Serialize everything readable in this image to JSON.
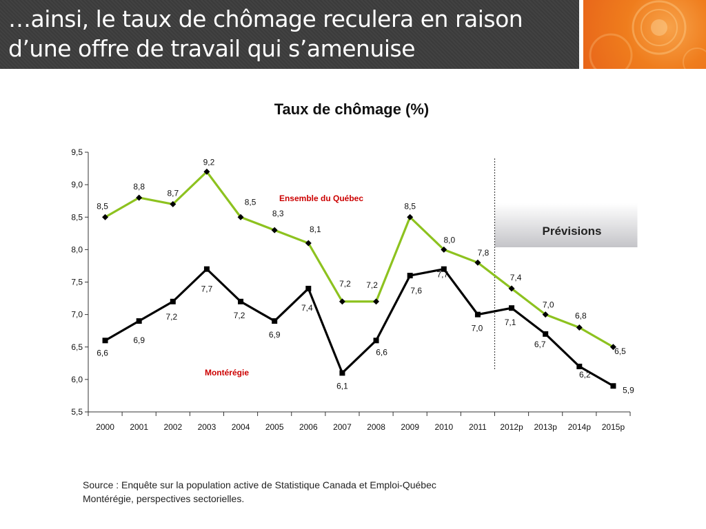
{
  "slide": {
    "title_line1": "…ainsi, le taux de chômage reculera en raison",
    "title_line2": "d’une offre de travail qui s’amenuise",
    "source_line1": "Source : Enquête sur la population active de Statistique Canada et Emploi-Québec",
    "source_line2": "Montérégie, perspectives sectorielles."
  },
  "colors": {
    "header_bg": "#3d3d3d",
    "accent_orange": "#ef7d1d",
    "series_quebec": "#8dc21f",
    "series_monteregie": "#000000",
    "series_label_red": "#cc0000"
  },
  "chart_data": {
    "type": "line",
    "title": "Taux de chômage (%)",
    "categories": [
      "2000",
      "2001",
      "2002",
      "2003",
      "2004",
      "2005",
      "2006",
      "2007",
      "2008",
      "2009",
      "2010",
      "2011",
      "2012p",
      "2013p",
      "2014p",
      "2015p"
    ],
    "series": [
      {
        "name": "Ensemble du Québec",
        "marker": "diamond",
        "values": [
          8.5,
          8.8,
          8.7,
          9.2,
          8.5,
          8.3,
          8.1,
          7.2,
          7.2,
          8.5,
          8.0,
          7.8,
          7.4,
          7.0,
          6.8,
          6.5
        ],
        "labels": [
          "8,5",
          "8,8",
          "8,7",
          "9,2",
          "8,5",
          "8,3",
          "8,1",
          "7,2",
          "7,2",
          "8,5",
          "8,0",
          "7,8",
          "7,4",
          "7,0",
          "6,8",
          "6,5"
        ]
      },
      {
        "name": "Montérégie",
        "marker": "square",
        "values": [
          6.6,
          6.9,
          7.2,
          7.7,
          7.2,
          6.9,
          7.4,
          6.1,
          6.6,
          7.6,
          7.7,
          7.0,
          7.1,
          6.7,
          6.2,
          5.9
        ],
        "labels": [
          "6,6",
          "6,9",
          "7,2",
          "7,7",
          "7,2",
          "6,9",
          "7,4",
          "6,1",
          "6,6",
          "7,6",
          "7,7",
          "7,0",
          "7,1",
          "6,7",
          "6,2",
          "5,9"
        ]
      }
    ],
    "y_ticks": [
      "5,5",
      "6,0",
      "6,5",
      "7,0",
      "7,5",
      "8,0",
      "8,5",
      "9,0",
      "9,5"
    ],
    "ylim": [
      5.5,
      9.5
    ],
    "forecast_start_index": 12,
    "forecast_label": "Prévisions",
    "grid": false,
    "legend": "inline labels"
  }
}
